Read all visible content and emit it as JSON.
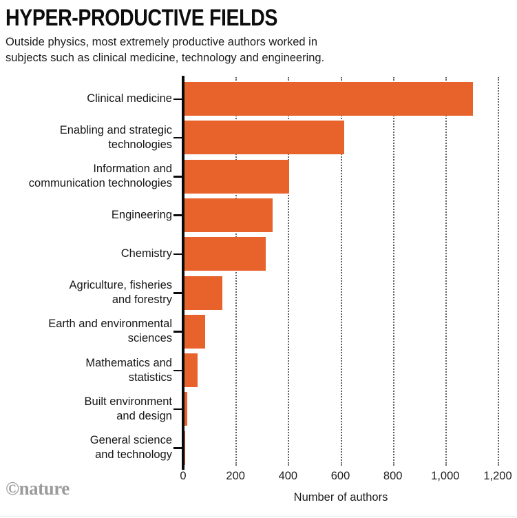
{
  "header": {
    "title": "HYPER-PRODUCTIVE FIELDS",
    "subtitle": "Outside physics, most extremely productive authors worked in\nsubjects such as clinical medicine, technology and engineering."
  },
  "footer": {
    "credit": "©nature"
  },
  "chart_data": {
    "type": "bar",
    "orientation": "horizontal",
    "title": "HYPER-PRODUCTIVE FIELDS",
    "categories": [
      "Clinical medicine",
      "Enabling and strategic\ntechnologies",
      "Information and\ncommunication technologies",
      "Engineering",
      "Chemistry",
      "Agriculture, fisheries\nand forestry",
      "Earth and environmental\nsciences",
      "Mathematics and\nstatistics",
      "Built environment\nand design",
      "General science\nand technology"
    ],
    "values": [
      1100,
      610,
      400,
      335,
      310,
      145,
      80,
      50,
      10,
      3
    ],
    "xlabel": "Number of authors",
    "xlim": [
      0,
      1200
    ],
    "xticks": [
      0,
      200,
      400,
      600,
      800,
      1000,
      1200
    ],
    "xtick_labels": [
      "0",
      "200",
      "400",
      "600",
      "800",
      "1,000",
      "1,200"
    ],
    "grid": "dotted-vertical",
    "legend": "none",
    "bar_color": "#E8622C",
    "axis_color": "#0a0a0a",
    "gridline_color": "#5f5f5f"
  }
}
